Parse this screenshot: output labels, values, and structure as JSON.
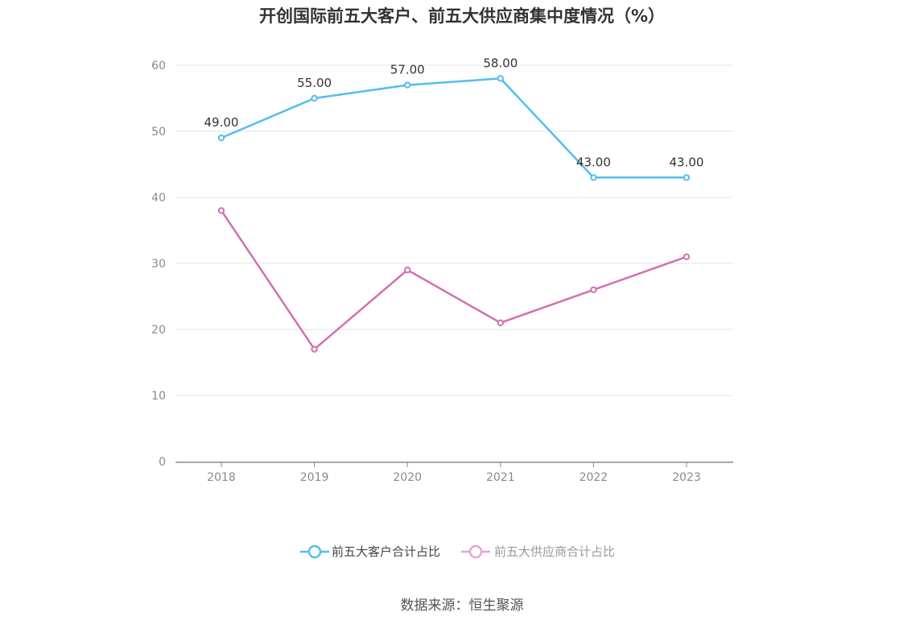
{
  "chart_data": {
    "type": "line",
    "title": "开创国际前五大客户、前五大供应商集中度情况（%）",
    "x": [
      "2018",
      "2019",
      "2020",
      "2021",
      "2022",
      "2023"
    ],
    "ylim": [
      0,
      60
    ],
    "yticks": [
      "0",
      "10",
      "20",
      "30",
      "40",
      "50",
      "60"
    ],
    "grid": true,
    "legend_position": "bottom",
    "series": [
      {
        "name": "前五大客户合计占比",
        "values": [
          49,
          55,
          57,
          58,
          43,
          43
        ],
        "labels": [
          "49.00",
          "55.00",
          "57.00",
          "58.00",
          "43.00",
          "43.00"
        ],
        "color": "#56bdee"
      },
      {
        "name": "前五大供应商合计占比",
        "values": [
          38,
          17,
          29,
          21,
          26,
          31
        ],
        "color": "#d46fb0",
        "legend_color": "#e6a5d0"
      }
    ]
  },
  "source": "数据来源：恒生聚源"
}
